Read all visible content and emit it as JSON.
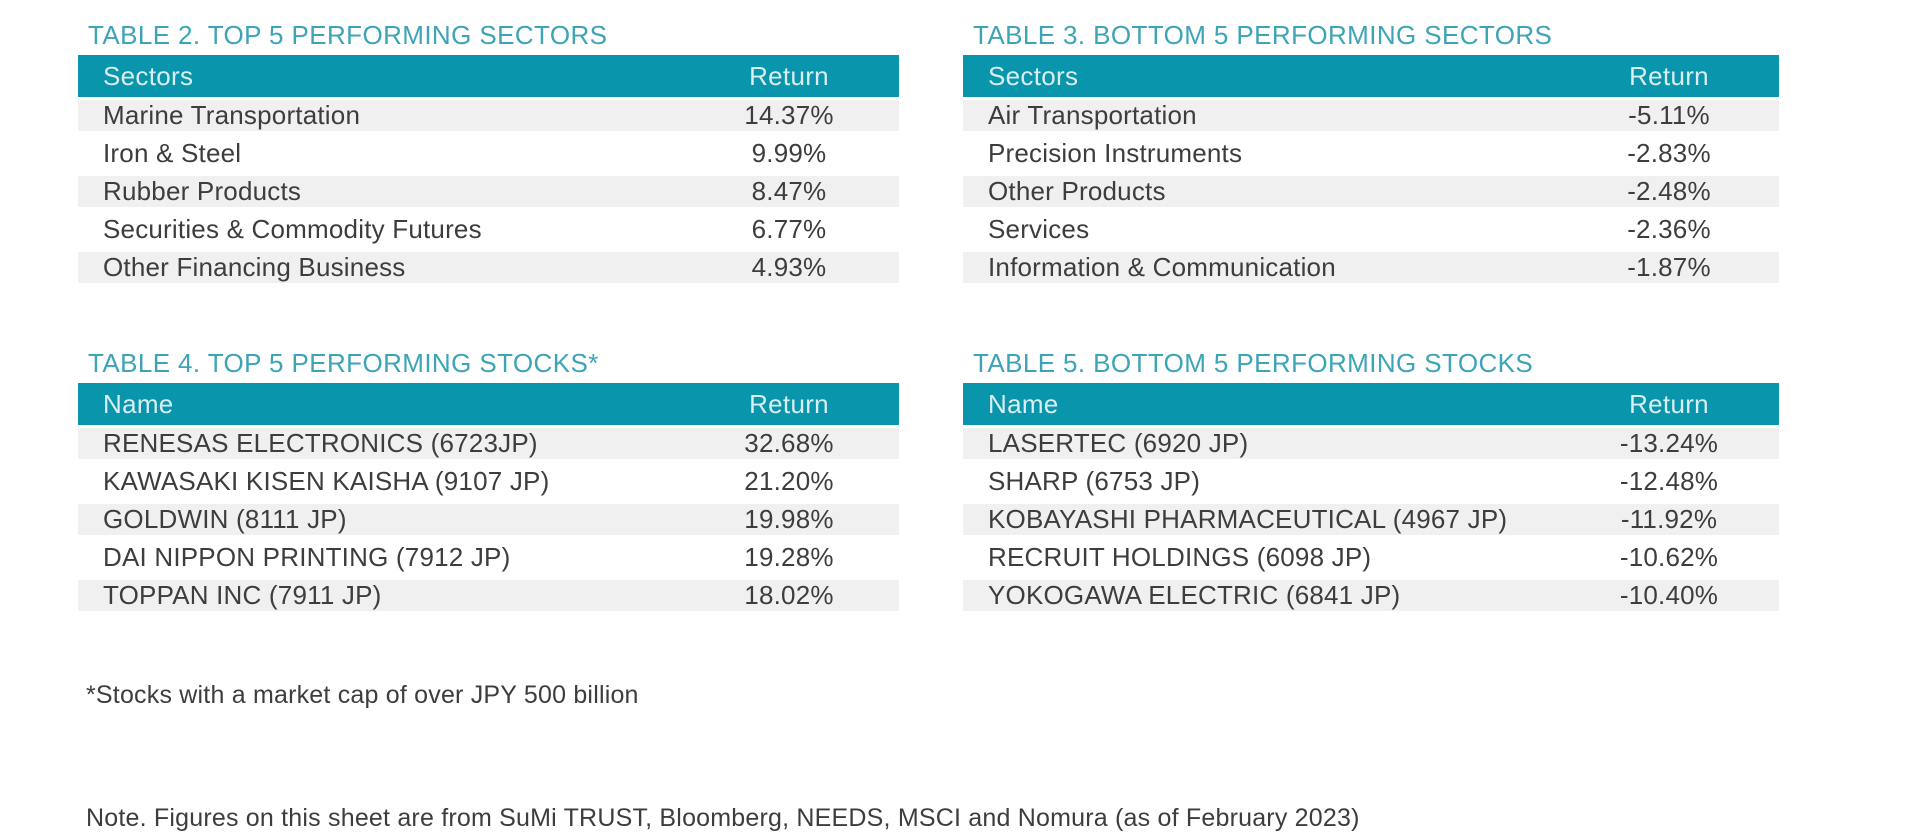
{
  "colors": {
    "header_band_bg": "#0995ab",
    "header_band_text": "#d9eef2",
    "table_title_text": "#3da4b8",
    "row_alt_bg": "#f0f0f0",
    "body_text": "#3d3d3d"
  },
  "tables": [
    {
      "title": "TABLE 2. TOP 5 PERFORMING SECTORS",
      "columns": [
        "Sectors",
        "Return"
      ],
      "rows": [
        [
          "Marine Transportation",
          "14.37%"
        ],
        [
          "Iron & Steel",
          "9.99%"
        ],
        [
          "Rubber Products",
          "8.47%"
        ],
        [
          "Securities & Commodity Futures",
          "6.77%"
        ],
        [
          "Other Financing Business",
          "4.93%"
        ]
      ]
    },
    {
      "title": "TABLE 3. BOTTOM 5 PERFORMING SECTORS",
      "columns": [
        "Sectors",
        "Return"
      ],
      "rows": [
        [
          "Air Transportation",
          "-5.11%"
        ],
        [
          "Precision Instruments",
          "-2.83%"
        ],
        [
          "Other Products",
          "-2.48%"
        ],
        [
          "Services",
          "-2.36%"
        ],
        [
          "Information & Communication",
          "-1.87%"
        ]
      ]
    },
    {
      "title": "TABLE 4. TOP 5 PERFORMING STOCKS*",
      "columns": [
        "Name",
        "Return"
      ],
      "rows": [
        [
          "RENESAS ELECTRONICS (6723JP)",
          "32.68%"
        ],
        [
          "KAWASAKI KISEN KAISHA (9107 JP)",
          "21.20%"
        ],
        [
          "GOLDWIN (8111 JP)",
          "19.98%"
        ],
        [
          "DAI NIPPON PRINTING (7912 JP)",
          "19.28%"
        ],
        [
          "TOPPAN INC (7911 JP)",
          "18.02%"
        ]
      ]
    },
    {
      "title": "TABLE 5. BOTTOM 5 PERFORMING STOCKS",
      "columns": [
        "Name",
        "Return"
      ],
      "rows": [
        [
          "LASERTEC (6920 JP)",
          "-13.24%"
        ],
        [
          "SHARP (6753 JP)",
          "-12.48%"
        ],
        [
          "KOBAYASHI PHARMACEUTICAL (4967 JP)",
          "-11.92%"
        ],
        [
          "RECRUIT HOLDINGS (6098 JP)",
          "-10.62%"
        ],
        [
          "YOKOGAWA ELECTRIC (6841 JP)",
          "-10.40%"
        ]
      ]
    }
  ],
  "footnote": "*Stocks with a market cap of over JPY 500 billion",
  "source_note": "Note. Figures on this sheet are from SuMi TRUST, Bloomberg, NEEDS, MSCI and Nomura (as of February 2023)"
}
